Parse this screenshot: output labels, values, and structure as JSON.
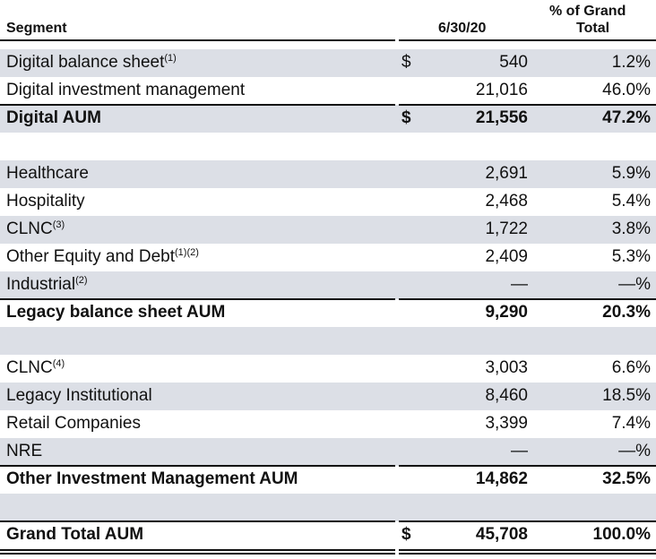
{
  "header": {
    "segment": "Segment",
    "date": "6/30/20",
    "pct_line1": "% of Grand",
    "pct_line2": "Total"
  },
  "rows": [
    {
      "label": "Digital balance sheet",
      "sup": "(1)",
      "dollar": "$",
      "value": "540",
      "pct": "1.2%"
    },
    {
      "label": "Digital investment management",
      "sup": "",
      "dollar": "",
      "value": "21,016",
      "pct": "46.0%"
    },
    {
      "label": "Digital AUM",
      "sup": "",
      "dollar": "$",
      "value": "21,556",
      "pct": "47.2%"
    },
    {
      "label": "",
      "sup": "",
      "dollar": "",
      "value": "",
      "pct": ""
    },
    {
      "label": "Healthcare",
      "sup": "",
      "dollar": "",
      "value": "2,691",
      "pct": "5.9%"
    },
    {
      "label": "Hospitality",
      "sup": "",
      "dollar": "",
      "value": "2,468",
      "pct": "5.4%"
    },
    {
      "label": "CLNC",
      "sup": "(3)",
      "dollar": "",
      "value": "1,722",
      "pct": "3.8%"
    },
    {
      "label": "Other Equity and Debt",
      "sup": "(1)(2)",
      "dollar": "",
      "value": "2,409",
      "pct": "5.3%"
    },
    {
      "label": "Industrial",
      "sup": "(2)",
      "dollar": "",
      "value": "—",
      "pct": "—%"
    },
    {
      "label": "Legacy balance sheet AUM",
      "sup": "",
      "dollar": "",
      "value": "9,290",
      "pct": "20.3%"
    },
    {
      "label": "",
      "sup": "",
      "dollar": "",
      "value": "",
      "pct": ""
    },
    {
      "label": "CLNC",
      "sup": "(4)",
      "dollar": "",
      "value": "3,003",
      "pct": "6.6%"
    },
    {
      "label": "Legacy Institutional",
      "sup": "",
      "dollar": "",
      "value": "8,460",
      "pct": "18.5%"
    },
    {
      "label": "Retail Companies",
      "sup": "",
      "dollar": "",
      "value": "3,399",
      "pct": "7.4%"
    },
    {
      "label": "NRE",
      "sup": "",
      "dollar": "",
      "value": "—",
      "pct": "—%"
    },
    {
      "label": "Other Investment Management AUM",
      "sup": "",
      "dollar": "",
      "value": "14,862",
      "pct": "32.5%"
    },
    {
      "label": "",
      "sup": "",
      "dollar": "",
      "value": "",
      "pct": ""
    },
    {
      "label": "Grand Total AUM",
      "sup": "",
      "dollar": "$",
      "value": "45,708",
      "pct": "100.0%"
    }
  ],
  "colors": {
    "shade": "#dcdfe6",
    "rule": "#111111"
  }
}
